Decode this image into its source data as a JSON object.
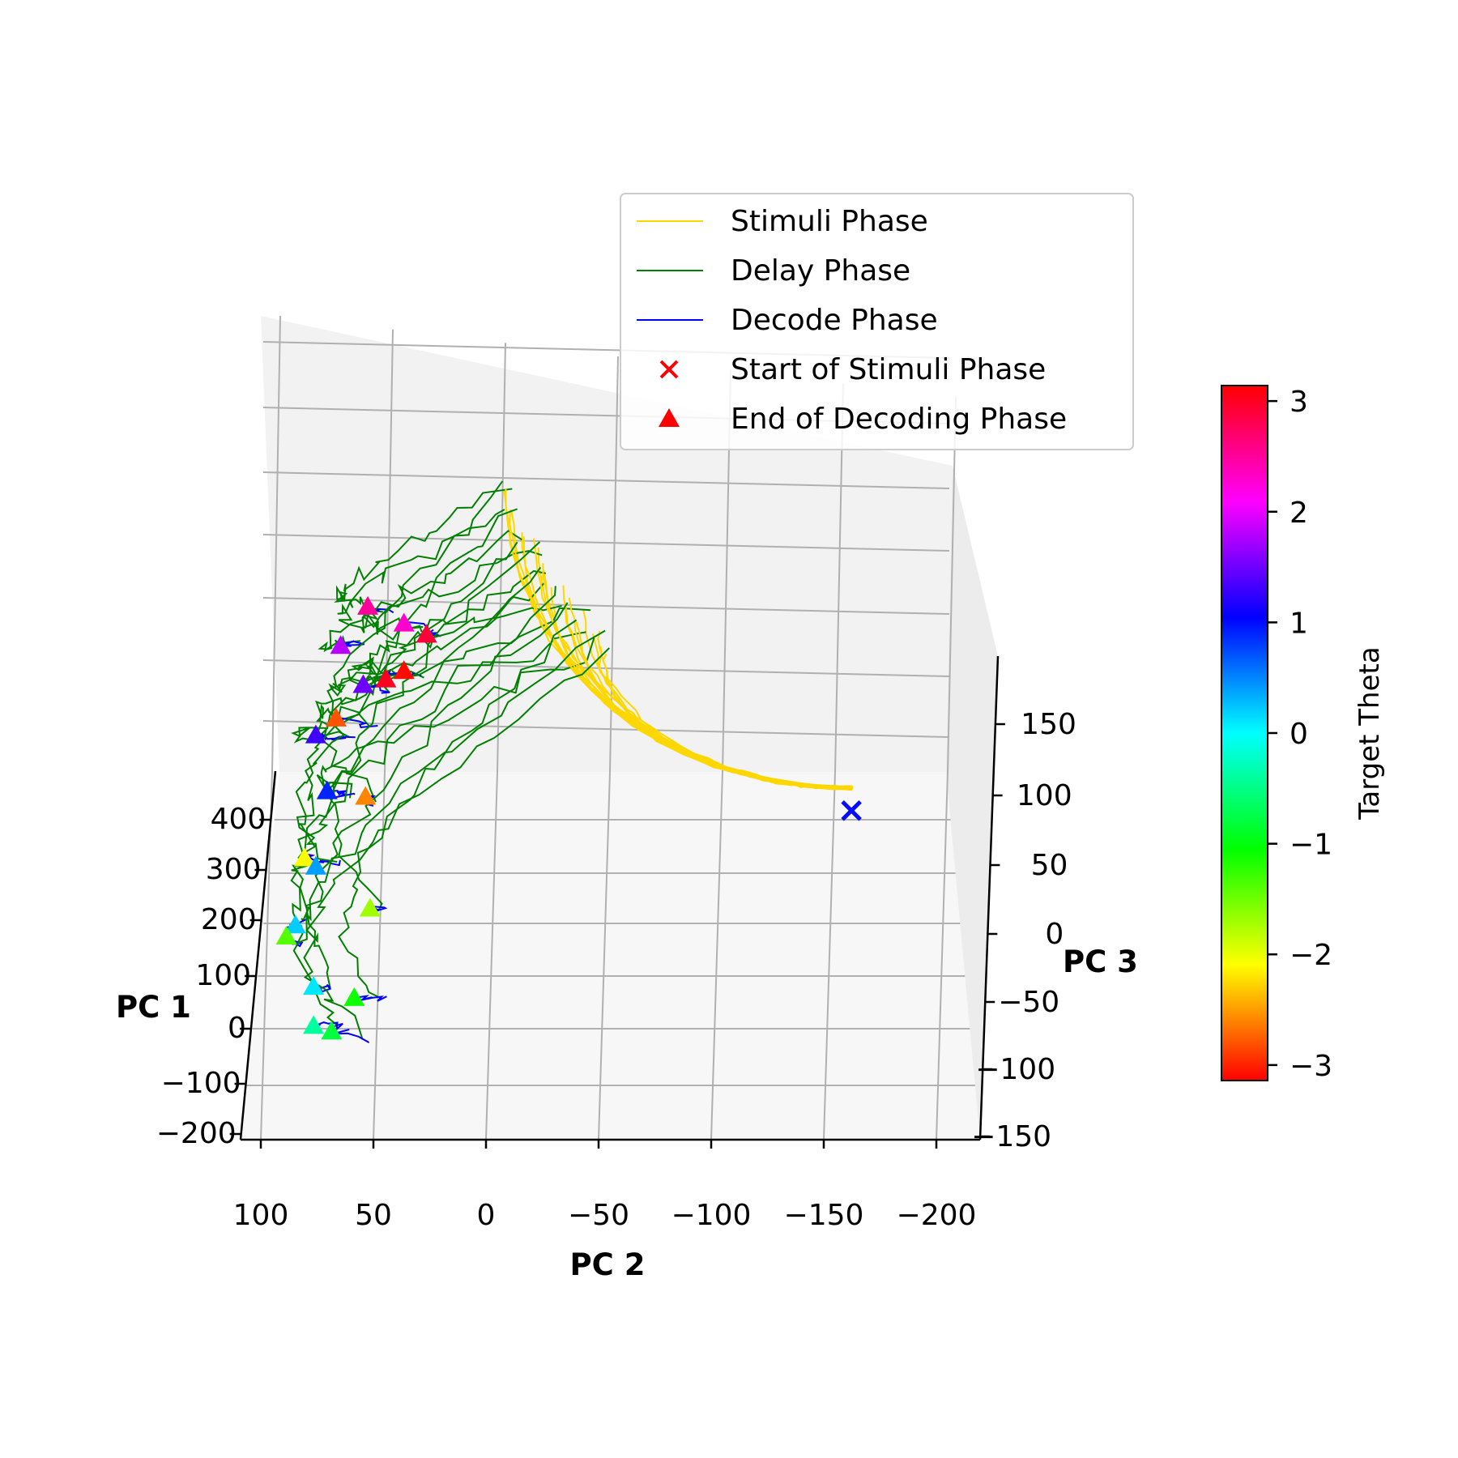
{
  "chart_data": {
    "type": "line",
    "subtype": "3d-trajectory",
    "title": "",
    "axes": {
      "x": {
        "label": "PC 2",
        "ticks": [
          "100",
          "50",
          "0",
          "−50",
          "−100",
          "−150",
          "−200"
        ],
        "range": [
          100,
          -200
        ]
      },
      "y": {
        "label": "PC 1",
        "ticks": [
          "400",
          "300",
          "200",
          "100",
          "0",
          "−100",
          "−200"
        ],
        "range": [
          -200,
          400
        ]
      },
      "z": {
        "label": "PC 3",
        "ticks": [
          "150",
          "100",
          "50",
          "0",
          "−50",
          "−100",
          "−150"
        ],
        "range": [
          -150,
          150
        ]
      }
    },
    "grid": true,
    "legend": {
      "placement": "top-right",
      "entries": [
        {
          "label": "Stimuli Phase",
          "color": "#ffd700",
          "marker": "line"
        },
        {
          "label": "Delay Phase",
          "color": "#008000",
          "marker": "line"
        },
        {
          "label": "Decode Phase",
          "color": "#0000ff",
          "marker": "line"
        },
        {
          "label": "Start of Stimuli Phase",
          "color": "#ff0000",
          "marker": "x"
        },
        {
          "label": "End of Decoding Phase",
          "color": "#ff0000",
          "marker": "triangle"
        }
      ]
    },
    "colorbar": {
      "label": "Target Theta",
      "range": [
        -3.14,
        3.14
      ],
      "ticks": [
        "3",
        "2",
        "1",
        "0",
        "−1",
        "−2",
        "−3"
      ],
      "colormap": "hsv"
    },
    "start_marker": {
      "pc2": -190,
      "pc3": 45,
      "theta": 1.0
    },
    "trajectory_endpoints": [
      {
        "pc2": 24,
        "pc3": 118,
        "theta": 2.5
      },
      {
        "pc2": 8,
        "pc3": 112,
        "theta": 2.3
      },
      {
        "pc2": -2,
        "pc3": 108,
        "theta": 2.9
      },
      {
        "pc2": 36,
        "pc3": 104,
        "theta": 1.8
      },
      {
        "pc2": 8,
        "pc3": 95,
        "theta": -3.1
      },
      {
        "pc2": 16,
        "pc3": 92,
        "theta": 3.0
      },
      {
        "pc2": 26,
        "pc3": 90,
        "theta": 1.5
      },
      {
        "pc2": 38,
        "pc3": 78,
        "theta": -2.8
      },
      {
        "pc2": 47,
        "pc3": 72,
        "theta": 1.3
      },
      {
        "pc2": 42,
        "pc3": 52,
        "theta": 0.9
      },
      {
        "pc2": 25,
        "pc3": 50,
        "theta": -2.6
      },
      {
        "pc2": 52,
        "pc3": 28,
        "theta": -2.1
      },
      {
        "pc2": 47,
        "pc3": 25,
        "theta": 0.4
      },
      {
        "pc2": 23,
        "pc3": 10,
        "theta": -1.7
      },
      {
        "pc2": 56,
        "pc3": 4,
        "theta": 0.2
      },
      {
        "pc2": 60,
        "pc3": 0,
        "theta": -1.4
      },
      {
        "pc2": 48,
        "pc3": -18,
        "theta": 0.1
      },
      {
        "pc2": 30,
        "pc3": -22,
        "theta": -1.1
      },
      {
        "pc2": 48,
        "pc3": -32,
        "theta": -0.4
      },
      {
        "pc2": 40,
        "pc3": -34,
        "theta": -0.8
      }
    ]
  }
}
